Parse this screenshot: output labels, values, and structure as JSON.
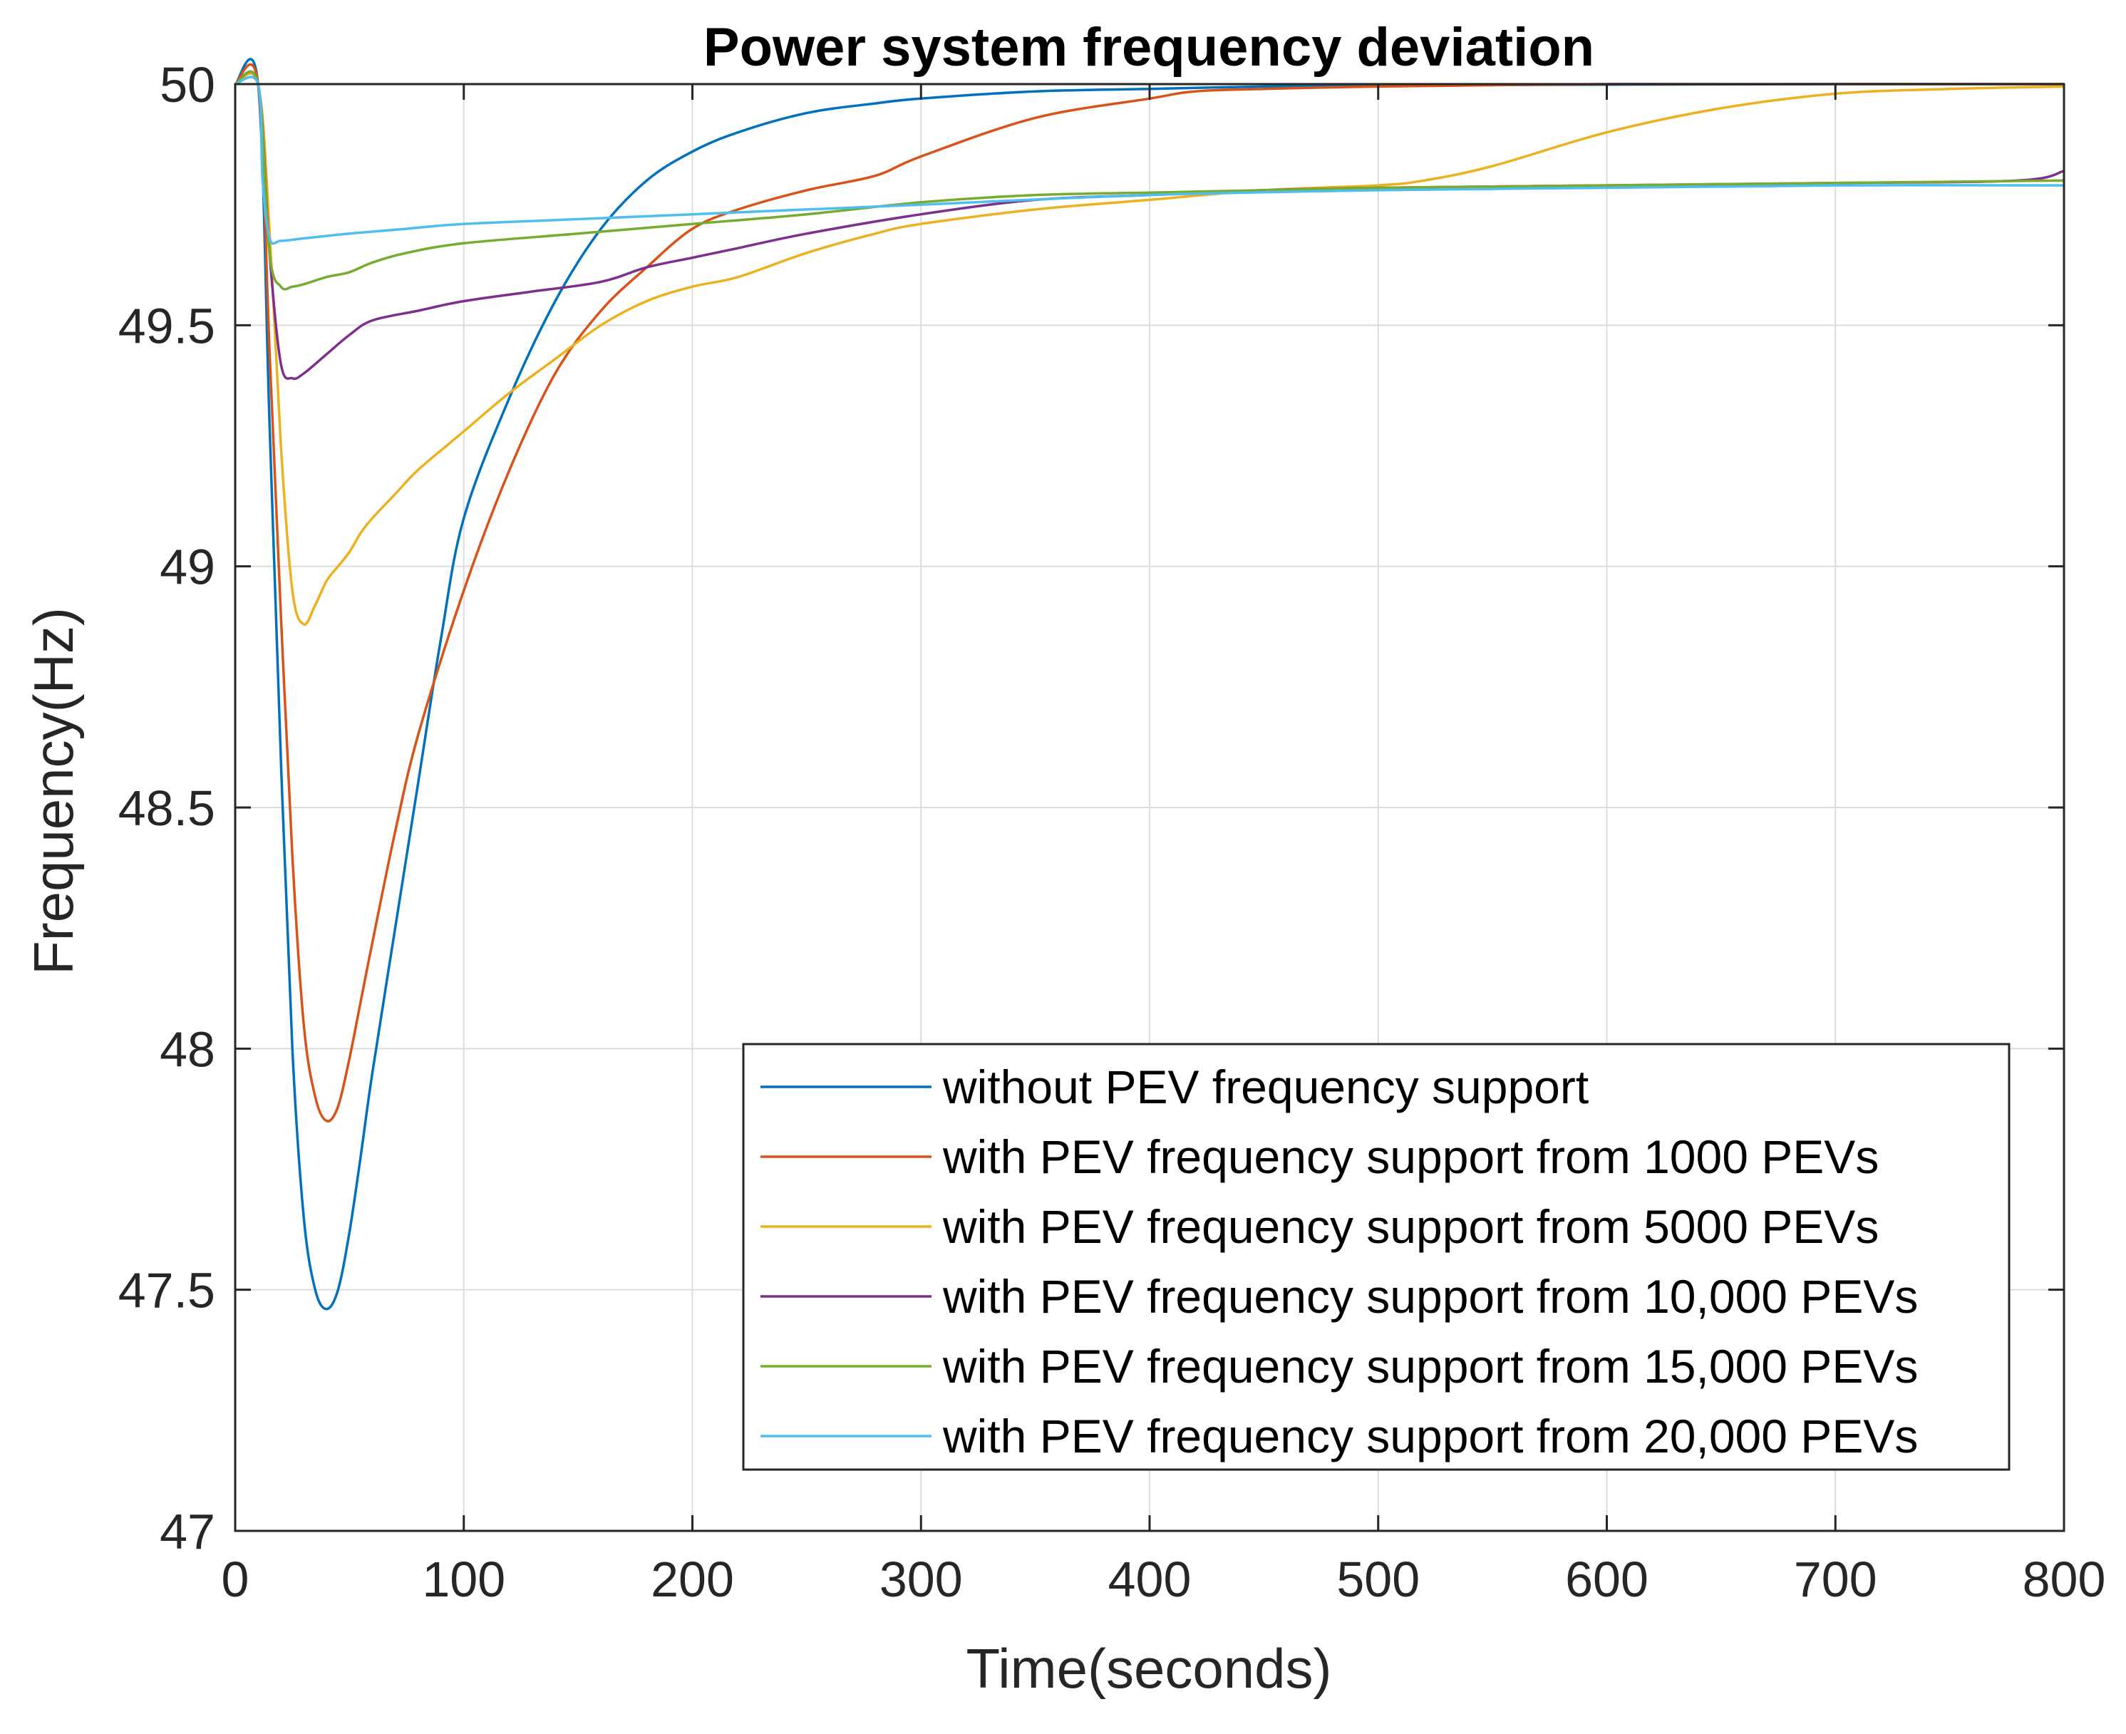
{
  "chart_data": {
    "type": "line",
    "title": "Power system frequency deviation",
    "xlabel": "Time(seconds)",
    "ylabel": "Frequency(Hz)",
    "xlim": [
      0,
      800
    ],
    "ylim": [
      47,
      50
    ],
    "xticks": [
      0,
      100,
      200,
      300,
      400,
      500,
      600,
      700,
      800
    ],
    "yticks": [
      47,
      47.5,
      48,
      48.5,
      49,
      49.5,
      50
    ],
    "xtick_labels": [
      "0",
      "100",
      "200",
      "300",
      "400",
      "500",
      "600",
      "700",
      "800"
    ],
    "ytick_labels": [
      "47",
      "47.5",
      "48",
      "48.5",
      "49",
      "49.5",
      "50"
    ],
    "grid": true,
    "legend_position": "bottom-right",
    "series": [
      {
        "name": "without PEV frequency support",
        "color": "#0072BD",
        "x": [
          0,
          10,
          15,
          20,
          25,
          30,
          35,
          40,
          45,
          50,
          55,
          60,
          70,
          80,
          90,
          100,
          120,
          140,
          160,
          180,
          200,
          220,
          250,
          280,
          300,
          350,
          400,
          450,
          500,
          600,
          700,
          800
        ],
        "y": [
          50,
          50,
          49.3,
          48.6,
          48.0,
          47.65,
          47.5,
          47.46,
          47.5,
          47.62,
          47.78,
          47.95,
          48.25,
          48.55,
          48.85,
          49.1,
          49.35,
          49.55,
          49.7,
          49.8,
          49.86,
          49.9,
          49.94,
          49.96,
          49.97,
          49.985,
          49.99,
          49.995,
          49.997,
          49.999,
          50,
          50
        ]
      },
      {
        "name": "with PEV frequency support from  1000 PEVs",
        "color": "#D95319",
        "x": [
          0,
          10,
          15,
          20,
          25,
          30,
          35,
          40,
          45,
          50,
          55,
          60,
          70,
          80,
          100,
          120,
          140,
          160,
          180,
          200,
          220,
          250,
          280,
          300,
          350,
          400,
          420,
          450,
          500,
          600,
          700,
          800
        ],
        "y": [
          50,
          50,
          49.45,
          48.9,
          48.4,
          48.05,
          47.9,
          47.85,
          47.88,
          47.98,
          48.1,
          48.22,
          48.45,
          48.65,
          48.95,
          49.2,
          49.4,
          49.53,
          49.62,
          49.7,
          49.74,
          49.78,
          49.81,
          49.85,
          49.93,
          49.97,
          49.985,
          49.99,
          49.995,
          50,
          50,
          50
        ]
      },
      {
        "name": "with PEV frequency support from  5000 PEVs",
        "color": "#EDB120",
        "x": [
          0,
          10,
          15,
          20,
          25,
          30,
          35,
          40,
          45,
          50,
          55,
          60,
          70,
          80,
          100,
          120,
          140,
          160,
          180,
          200,
          220,
          250,
          280,
          300,
          350,
          400,
          450,
          500,
          520,
          550,
          600,
          650,
          700,
          750,
          800
        ],
        "y": [
          50,
          50,
          49.7,
          49.25,
          48.95,
          48.88,
          48.92,
          48.97,
          49.0,
          49.03,
          49.07,
          49.1,
          49.15,
          49.2,
          49.28,
          49.36,
          49.43,
          49.5,
          49.55,
          49.58,
          49.6,
          49.65,
          49.69,
          49.71,
          49.74,
          49.76,
          49.78,
          49.79,
          49.8,
          49.83,
          49.9,
          49.95,
          49.98,
          49.99,
          49.995
        ]
      },
      {
        "name": "with PEV frequency support from 10,000 PEVs",
        "color": "#7E2F8E",
        "x": [
          0,
          10,
          15,
          20,
          25,
          30,
          40,
          50,
          60,
          80,
          100,
          130,
          160,
          180,
          200,
          220,
          250,
          300,
          350,
          400,
          450,
          500,
          600,
          700,
          780,
          800
        ],
        "y": [
          50,
          50,
          49.65,
          49.42,
          49.39,
          49.4,
          49.44,
          49.48,
          49.51,
          49.53,
          49.55,
          49.57,
          49.59,
          49.62,
          49.64,
          49.66,
          49.69,
          49.73,
          49.76,
          49.77,
          49.78,
          49.785,
          49.79,
          49.795,
          49.8,
          49.82
        ]
      },
      {
        "name": "with PEV frequency support from 15,000 PEVs",
        "color": "#77AC30",
        "x": [
          0,
          10,
          15,
          20,
          25,
          30,
          40,
          50,
          60,
          75,
          100,
          150,
          200,
          250,
          300,
          350,
          400,
          450,
          500,
          600,
          700,
          800
        ],
        "y": [
          50,
          50,
          49.65,
          49.58,
          49.58,
          49.585,
          49.6,
          49.61,
          49.63,
          49.65,
          49.67,
          49.69,
          49.71,
          49.73,
          49.755,
          49.77,
          49.775,
          49.78,
          49.785,
          49.79,
          49.795,
          49.8
        ]
      },
      {
        "name": "with PEV frequency support from 20,000 PEVs",
        "color": "#4DBEEE",
        "x": [
          0,
          10,
          12,
          15,
          20,
          30,
          50,
          75,
          100,
          150,
          200,
          250,
          300,
          400,
          500,
          600,
          700,
          800
        ],
        "y": [
          50,
          50,
          49.8,
          49.68,
          49.675,
          49.68,
          49.69,
          49.7,
          49.71,
          49.72,
          49.73,
          49.74,
          49.75,
          49.77,
          49.78,
          49.785,
          49.79,
          49.79
        ]
      }
    ]
  }
}
